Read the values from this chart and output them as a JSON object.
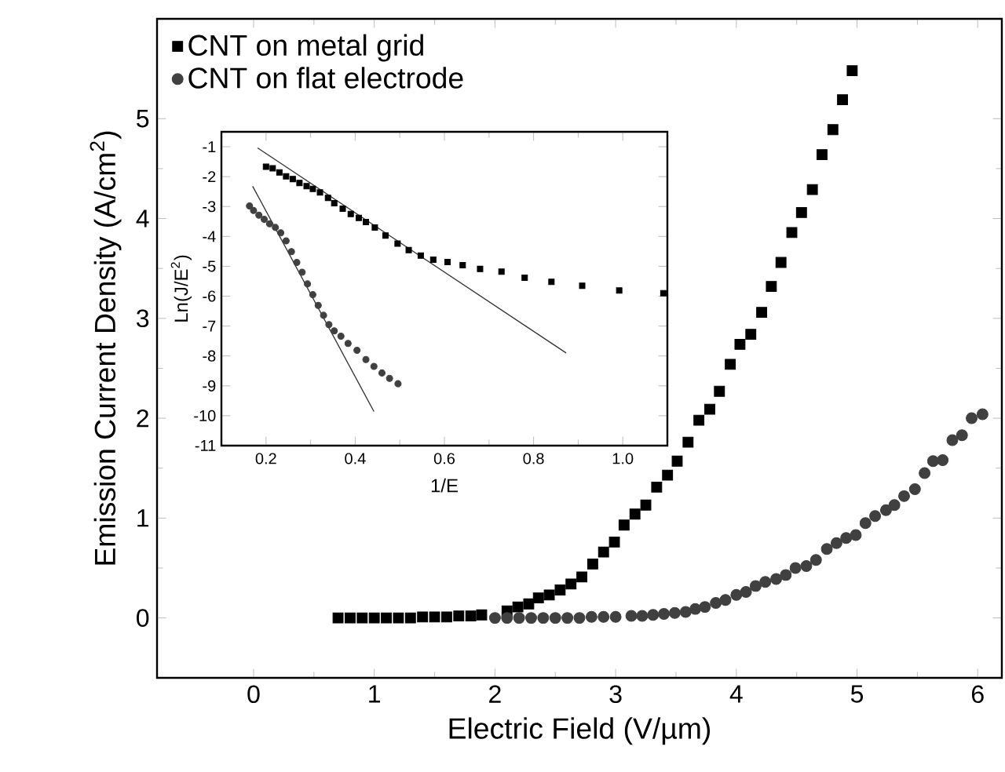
{
  "chart_data": [
    {
      "type": "scatter",
      "xlabel": "Electric Field (V/µm)",
      "ylabel": "Emission Current Density (A/cm$^{2}$)",
      "xlim": [
        -0.8,
        6.2
      ],
      "ylim": [
        -0.6,
        6
      ],
      "xticks": [
        0,
        1,
        2,
        3,
        4,
        5,
        6
      ],
      "yticks": [
        0,
        1,
        2,
        3,
        4,
        5
      ],
      "legend": "top left",
      "grid": false,
      "series": [
        {
          "name": "CNT on metal grid",
          "color": "#000000",
          "marker": "square",
          "x": [
            0.7,
            0.8,
            0.9,
            1.0,
            1.1,
            1.2,
            1.3,
            1.4,
            1.5,
            1.6,
            1.7,
            1.8,
            1.89,
            2.01,
            2.1,
            2.19,
            2.28,
            2.36,
            2.45,
            2.54,
            2.63,
            2.72,
            2.81,
            2.9,
            2.99,
            3.07,
            3.16,
            3.25,
            3.34,
            3.43,
            3.51,
            3.6,
            3.69,
            3.78,
            3.86,
            3.95,
            4.03,
            4.12,
            4.21,
            4.29,
            4.37,
            4.46,
            4.54,
            4.63,
            4.71,
            4.8,
            4.88,
            4.96
          ],
          "values": [
            0,
            0,
            0,
            0,
            0,
            0,
            0,
            0.01,
            0.01,
            0.01,
            0.02,
            0.02,
            0.03,
            null,
            0.07,
            0.11,
            0.14,
            0.2,
            0.23,
            0.28,
            0.34,
            0.41,
            0.54,
            0.66,
            0.76,
            0.93,
            1.04,
            1.13,
            1.31,
            1.43,
            1.57,
            1.76,
            1.98,
            2.09,
            2.27,
            2.54,
            2.74,
            2.84,
            3.06,
            3.32,
            3.56,
            3.86,
            4.06,
            4.29,
            4.64,
            4.89,
            5.19,
            5.48
          ]
        },
        {
          "name": "CNT on flat electrode",
          "color": "#404040",
          "marker": "circle",
          "x": [
            2.0,
            2.1,
            2.2,
            2.3,
            2.4,
            2.5,
            2.6,
            2.7,
            2.8,
            2.9,
            3.0,
            3.13,
            3.22,
            3.31,
            3.4,
            3.49,
            3.58,
            3.66,
            3.74,
            3.83,
            3.91,
            4.0,
            4.08,
            4.16,
            4.24,
            4.33,
            4.41,
            4.49,
            4.58,
            4.66,
            4.75,
            4.83,
            4.91,
            4.99,
            5.07,
            5.15,
            5.24,
            5.31,
            5.39,
            5.48,
            5.56,
            5.63,
            5.71,
            5.79,
            5.87,
            5.95,
            6.04
          ],
          "values": [
            0,
            0,
            0,
            0,
            0,
            0,
            0,
            0,
            0.01,
            0.01,
            0.01,
            0.02,
            0.02,
            0.03,
            0.04,
            0.05,
            0.06,
            0.09,
            0.11,
            0.15,
            0.18,
            0.23,
            0.26,
            0.32,
            0.36,
            0.39,
            0.43,
            0.5,
            0.52,
            0.58,
            0.69,
            0.75,
            0.8,
            0.83,
            0.95,
            1.02,
            1.08,
            1.13,
            1.22,
            1.29,
            1.45,
            1.57,
            1.58,
            1.78,
            1.83,
            2.0,
            2.04
          ]
        }
      ]
    },
    {
      "type": "scatter",
      "xlabel": "1/E",
      "ylabel": "Ln(J/E$^{2}$)",
      "xlim": [
        0.1,
        1.1
      ],
      "ylim": [
        -11,
        -0.5
      ],
      "xticks": [
        {
          "value": 0.2,
          "label": "0.2"
        },
        {
          "value": 0.4,
          "label": "0.4"
        },
        {
          "value": 0.6,
          "label": "0.6"
        },
        {
          "value": 0.8,
          "label": "0.8"
        },
        {
          "value": 1.0,
          "label": "1.0"
        }
      ],
      "yticks": [
        -11,
        -10,
        -9,
        -8,
        -7,
        -6,
        -5,
        -4,
        -3,
        -2,
        -1
      ],
      "grid": false,
      "series": [
        {
          "color": "#000000",
          "marker": "square",
          "x": [
            0.2,
            0.215,
            0.23,
            0.245,
            0.26,
            0.275,
            0.291,
            0.305,
            0.321,
            0.339,
            0.353,
            0.372,
            0.39,
            0.408,
            0.424,
            0.444,
            0.468,
            0.495,
            0.52,
            0.547,
            0.575,
            0.607,
            0.641,
            0.68,
            0.728,
            0.78,
            0.84,
            0.909,
            0.992,
            1.091
          ],
          "values": [
            -1.67,
            -1.72,
            -1.86,
            -1.99,
            -2.08,
            -2.21,
            -2.32,
            -2.41,
            -2.53,
            -2.71,
            -2.89,
            -3.07,
            -3.25,
            -3.38,
            -3.52,
            -3.7,
            -3.97,
            -4.24,
            -4.46,
            -4.64,
            -4.78,
            -4.86,
            -4.96,
            -5.09,
            -5.18,
            -5.38,
            -5.52,
            -5.65,
            -5.81,
            -5.9
          ]
        },
        {
          "color": "#404040",
          "marker": "circle",
          "x": [
            0.163,
            0.172,
            0.184,
            0.196,
            0.208,
            0.221,
            0.233,
            0.245,
            0.257,
            0.269,
            0.281,
            0.293,
            0.305,
            0.317,
            0.329,
            0.341,
            0.353,
            0.368,
            0.384,
            0.404,
            0.424,
            0.442,
            0.46,
            0.477,
            0.496
          ],
          "values": [
            -2.98,
            -3.13,
            -3.29,
            -3.43,
            -3.58,
            -3.7,
            -3.88,
            -4.15,
            -4.51,
            -4.87,
            -5.2,
            -5.59,
            -5.95,
            -6.31,
            -6.64,
            -6.95,
            -7.16,
            -7.34,
            -7.58,
            -7.81,
            -8.12,
            -8.35,
            -8.57,
            -8.75,
            -8.93
          ]
        },
        {
          "type": "line",
          "color": "#333333",
          "marker": "none",
          "x": [
            0.181,
            0.873
          ],
          "values": [
            -1.04,
            -7.9
          ]
        },
        {
          "type": "line",
          "color": "#333333",
          "marker": "none",
          "x": [
            0.17,
            0.442
          ],
          "values": [
            -2.32,
            -9.86
          ]
        }
      ]
    }
  ]
}
